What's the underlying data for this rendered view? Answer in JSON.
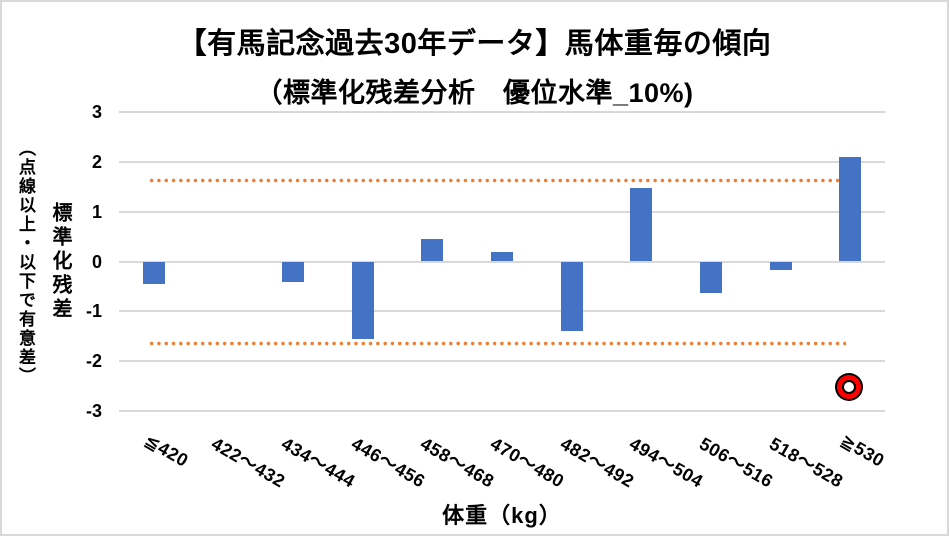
{
  "chart_data": {
    "type": "bar",
    "title_line1": "【有馬記念過去30年データ】馬体重毎の傾向",
    "title_line2": "（標準化残差分析　優位水準_10%)",
    "xlabel": "体重（kg）",
    "ylabel_main": "標準化残差",
    "ylabel_note": "（点線以上・以下で有意差）",
    "categories": [
      "≦420",
      "422～432",
      "434～444",
      "446～456",
      "458～468",
      "470～480",
      "482～492",
      "494～504",
      "506～516",
      "518～528",
      "≧530"
    ],
    "values": [
      -0.45,
      0,
      -0.42,
      -1.55,
      0.45,
      0.2,
      -1.4,
      1.47,
      -0.63,
      -0.17,
      2.1
    ],
    "yticks": [
      3,
      2,
      1,
      0,
      -1,
      -2,
      -3
    ],
    "ylim": [
      -3,
      3
    ],
    "grid": true,
    "legend": "none",
    "thresholds": {
      "upper": 1.645,
      "lower": -1.645,
      "style": "dotted"
    },
    "marker": {
      "category": "≧530",
      "category_index": 10,
      "value": -2.65,
      "shape": "double-circle"
    },
    "colors": {
      "bar": "#4472c4",
      "threshold": "#ed7d31",
      "gridline": "#d9d9d9",
      "text": "#000000",
      "marker_fill": "#ff0000",
      "marker_outline": "#000000",
      "marker_center": "#ffffff"
    }
  }
}
